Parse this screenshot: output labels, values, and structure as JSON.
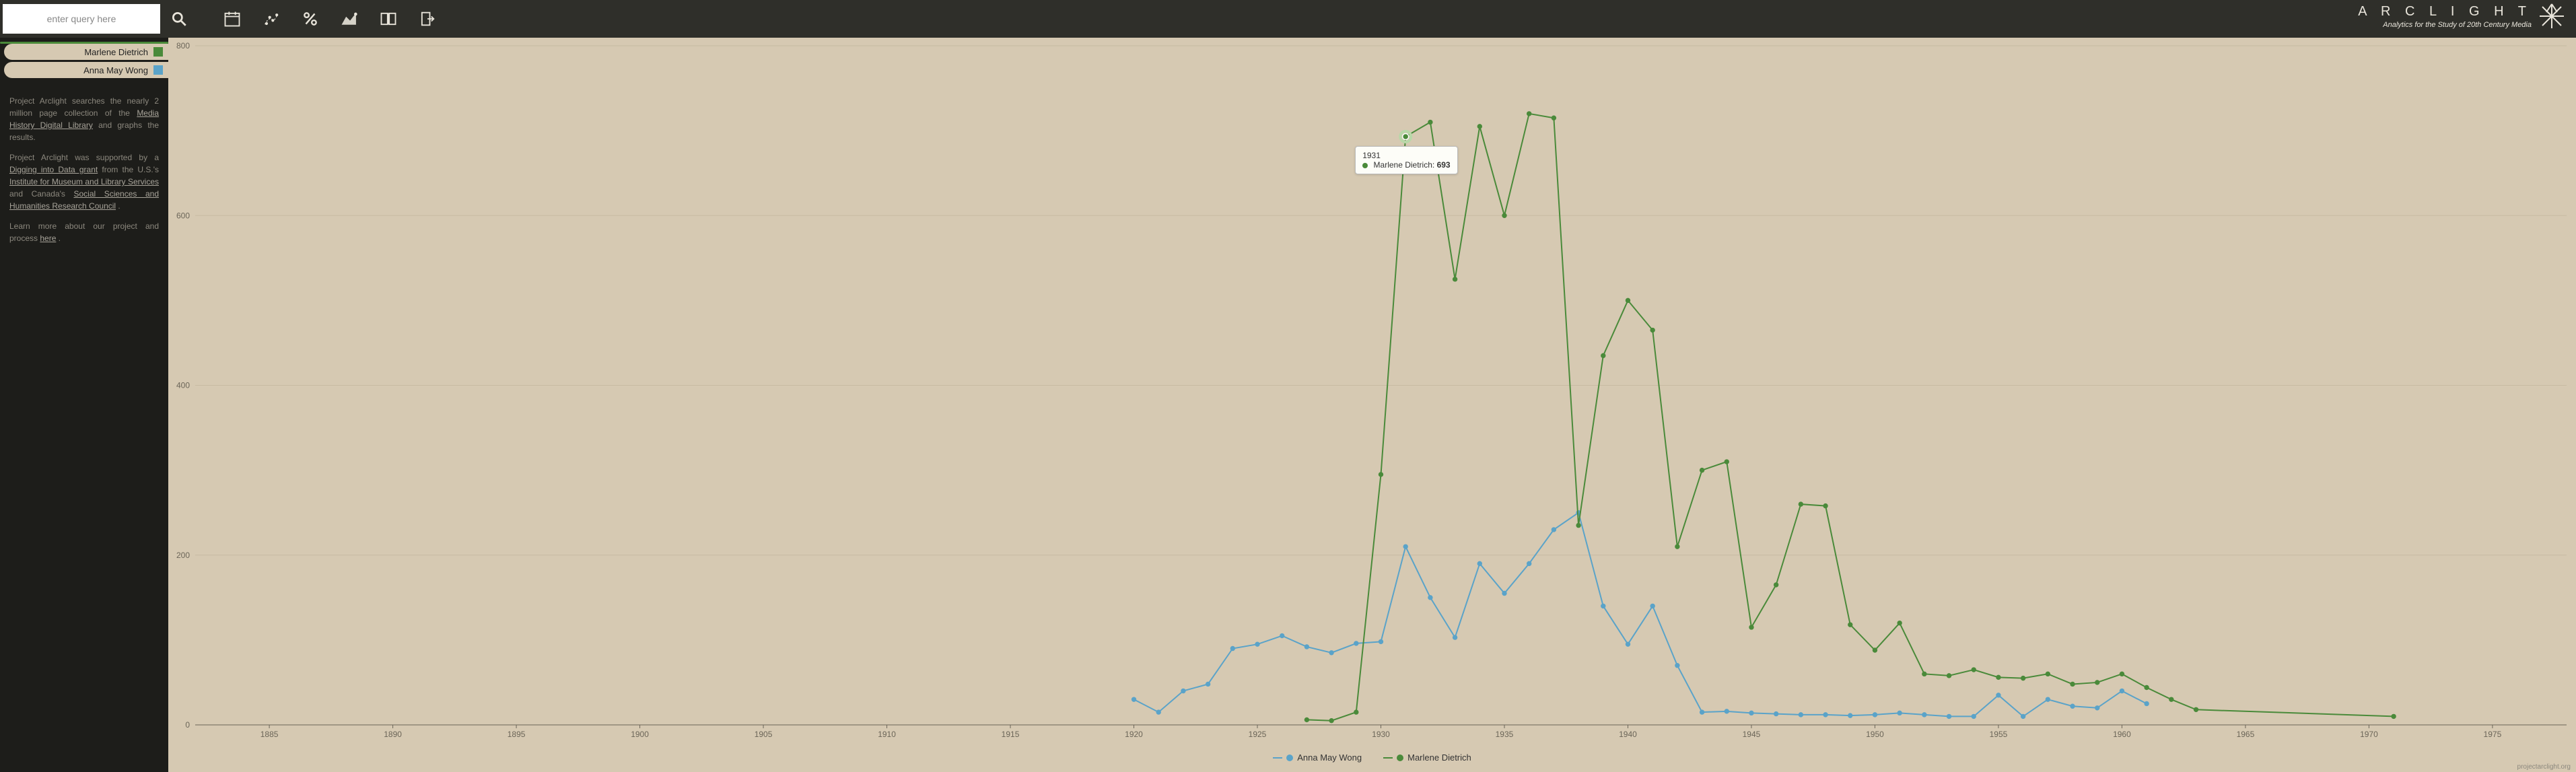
{
  "search": {
    "placeholder": "enter query here",
    "value": ""
  },
  "brand": {
    "title": "A R C L I G H T",
    "subtitle": "Analytics for the Study of 20th Century Media"
  },
  "toolbar_icons": [
    "calendar-icon",
    "scatter-icon",
    "percent-icon",
    "area-icon",
    "book-icon",
    "export-icon"
  ],
  "sidebar": {
    "legend": [
      {
        "label": "Marlene Dietrich",
        "color": "#4a8a3a",
        "active": true
      },
      {
        "label": "Anna May Wong",
        "color": "#5aa3c9",
        "active": false
      }
    ],
    "paragraphs": {
      "p1a": "Project Arclight searches the nearly 2 million page collection of the ",
      "p1_link1": "Media History Digital Library",
      "p1b": " and graphs the results.",
      "p2a": "Project Arclight was supported by a ",
      "p2_link1": "Digging into Data grant",
      "p2b": " from the U.S.'s ",
      "p2_link2": "Institute for Museum and Library Services",
      "p2c": " and Canada's ",
      "p2_link3": "Social Sciences and Humanities Research Council",
      "p2d": ".",
      "p3a": "Learn more about our project and process ",
      "p3_link1": "here",
      "p3b": "."
    }
  },
  "footer": {
    "link": "projectarclight.org"
  },
  "chart": {
    "type": "line",
    "background_color": "#d6c9b2",
    "grid_color": "#c7baa2",
    "axis_color": "#6b6558",
    "tick_fontsize": 12,
    "xlim": [
      1882,
      1578
    ],
    "x_start": 1885,
    "x_end": 1575,
    "x_step": 5,
    "x_ticks": [
      1885,
      1890,
      1895,
      1900,
      1905,
      1910,
      1915,
      1920,
      1925,
      1930,
      1935,
      1940,
      1945,
      1950,
      1955,
      1960,
      1965,
      1970,
      1975
    ],
    "ylim": [
      0,
      800
    ],
    "y_ticks": [
      0,
      200,
      400,
      600,
      800
    ],
    "marker_radius": 3.2,
    "line_width": 2,
    "series": [
      {
        "name": "Anna May Wong",
        "color": "#5aa3c9",
        "points": [
          [
            1920,
            30
          ],
          [
            1921,
            15
          ],
          [
            1922,
            40
          ],
          [
            1923,
            48
          ],
          [
            1924,
            90
          ],
          [
            1925,
            95
          ],
          [
            1926,
            105
          ],
          [
            1927,
            92
          ],
          [
            1928,
            85
          ],
          [
            1929,
            96
          ],
          [
            1930,
            98
          ],
          [
            1931,
            210
          ],
          [
            1932,
            150
          ],
          [
            1933,
            103
          ],
          [
            1934,
            190
          ],
          [
            1935,
            155
          ],
          [
            1936,
            190
          ],
          [
            1937,
            230
          ],
          [
            1938,
            250
          ],
          [
            1939,
            140
          ],
          [
            1940,
            95
          ],
          [
            1941,
            140
          ],
          [
            1942,
            70
          ],
          [
            1943,
            15
          ],
          [
            1944,
            16
          ],
          [
            1945,
            14
          ],
          [
            1946,
            13
          ],
          [
            1947,
            12
          ],
          [
            1948,
            12
          ],
          [
            1949,
            11
          ],
          [
            1950,
            12
          ],
          [
            1951,
            14
          ],
          [
            1952,
            12
          ],
          [
            1953,
            10
          ],
          [
            1954,
            10
          ],
          [
            1955,
            35
          ],
          [
            1956,
            10
          ],
          [
            1957,
            30
          ],
          [
            1958,
            22
          ],
          [
            1959,
            20
          ],
          [
            1960,
            40
          ],
          [
            1961,
            25
          ]
        ]
      },
      {
        "name": "Marlene Dietrich",
        "color": "#4a8a3a",
        "points": [
          [
            1927,
            6
          ],
          [
            1928,
            5
          ],
          [
            1929,
            15
          ],
          [
            1930,
            295
          ],
          [
            1931,
            693
          ],
          [
            1932,
            710
          ],
          [
            1933,
            525
          ],
          [
            1934,
            705
          ],
          [
            1935,
            600
          ],
          [
            1936,
            720
          ],
          [
            1937,
            715
          ],
          [
            1938,
            235
          ],
          [
            1939,
            435
          ],
          [
            1940,
            500
          ],
          [
            1941,
            465
          ],
          [
            1942,
            210
          ],
          [
            1943,
            300
          ],
          [
            1944,
            310
          ],
          [
            1945,
            115
          ],
          [
            1946,
            165
          ],
          [
            1947,
            260
          ],
          [
            1948,
            258
          ],
          [
            1949,
            118
          ],
          [
            1950,
            88
          ],
          [
            1951,
            120
          ],
          [
            1952,
            60
          ],
          [
            1953,
            58
          ],
          [
            1954,
            65
          ],
          [
            1955,
            56
          ],
          [
            1956,
            55
          ],
          [
            1957,
            60
          ],
          [
            1958,
            48
          ],
          [
            1959,
            50
          ],
          [
            1960,
            60
          ],
          [
            1961,
            44
          ],
          [
            1962,
            30
          ],
          [
            1963,
            18
          ],
          [
            1971,
            10
          ]
        ]
      }
    ],
    "tooltip": {
      "year": "1931",
      "series": "Marlene Dietrich",
      "value": "693",
      "color": "#4a8a3a"
    },
    "bottom_legend": [
      {
        "label": "Anna May Wong",
        "color": "#5aa3c9"
      },
      {
        "label": "Marlene Dietrich",
        "color": "#4a8a3a"
      }
    ]
  }
}
